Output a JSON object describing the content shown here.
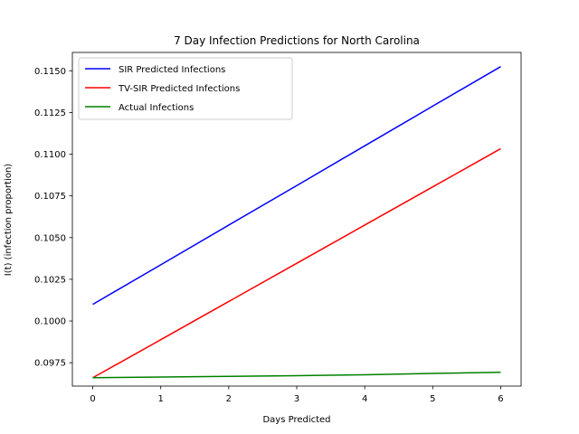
{
  "chart_data": {
    "type": "line",
    "title": "7 Day Infection Predictions for North Carolina",
    "xlabel": "Days Predicted",
    "ylabel": "I(t) (infection proportion)",
    "x": [
      0,
      1,
      2,
      3,
      4,
      5,
      6
    ],
    "xlim": [
      -0.3,
      6.3
    ],
    "ylim": [
      0.0961,
      0.1161
    ],
    "xticks": [
      0,
      1,
      2,
      3,
      4,
      5,
      6
    ],
    "xtick_labels": [
      "0",
      "1",
      "2",
      "3",
      "4",
      "5",
      "6"
    ],
    "yticks": [
      0.0975,
      0.1,
      0.1025,
      0.105,
      0.1075,
      0.11,
      0.1125,
      0.115
    ],
    "ytick_labels": [
      "0.0975",
      "0.1000",
      "0.1025",
      "0.1050",
      "0.1075",
      "0.1100",
      "0.1125",
      "0.1150"
    ],
    "grid": false,
    "legend_position": "top-left",
    "series": [
      {
        "name": "SIR Predicted Infections",
        "color": "#0000ff",
        "values": [
          0.101,
          0.10337,
          0.10575,
          0.10812,
          0.1105,
          0.11288,
          0.11525
        ]
      },
      {
        "name": "TV-SIR Predicted Infections",
        "color": "#ff0000",
        "values": [
          0.0966,
          0.09888,
          0.10117,
          0.10346,
          0.10575,
          0.10804,
          0.11033
        ]
      },
      {
        "name": "Actual Infections",
        "color": "#008000",
        "values": [
          0.0966,
          0.09664,
          0.09668,
          0.09672,
          0.09678,
          0.09686,
          0.09693
        ]
      }
    ]
  }
}
